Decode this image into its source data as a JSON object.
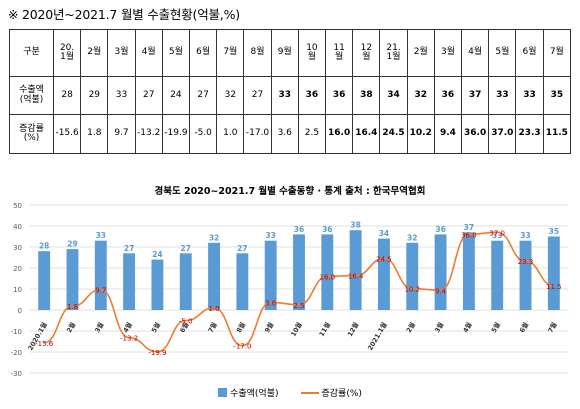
{
  "header": {
    "title": "※  2020년~2021.7 월별  수출현황(억불,%)"
  },
  "table": {
    "row_labels": [
      "구분",
      "수출액\n(억불)",
      "증감률\n(%)"
    ],
    "months": [
      "20.\n1월",
      "2월",
      "3월",
      "4월",
      "5월",
      "6월",
      "7월",
      "8월",
      "9월",
      "10\n월",
      "11\n월",
      "12\n월",
      "21.\n1월",
      "2월",
      "3월",
      "4월",
      "5월",
      "6월",
      "7월"
    ],
    "exports": [
      "28",
      "29",
      "33",
      "27",
      "24",
      "27",
      "32",
      "27",
      "33",
      "36",
      "36",
      "38",
      "34",
      "32",
      "36",
      "37",
      "33",
      "33",
      "35"
    ],
    "changes": [
      "-15.6",
      "1.8",
      "9.7",
      "-13.2",
      "-19.9",
      "-5.0",
      "1.0",
      "-17.0",
      "3.6",
      "2.5",
      "16.0",
      "16.4",
      "24.5",
      "10.2",
      "9.4",
      "36.0",
      "37.0",
      "23.3",
      "11.5"
    ]
  },
  "chart_title": "경북도 2020~2021.7 월별 수출동향   · 통계 출처 : 한국무역협회",
  "legend": {
    "bar": "수출액(억불)",
    "line": "증감률(%)"
  },
  "colors": {
    "bar": "#5b9bd5",
    "line": "#ed7d31",
    "grid": "#d9d9d9"
  },
  "chart_data": {
    "type": "bar",
    "categories": [
      "2020.1월",
      "2월",
      "3월",
      "4월",
      "5월",
      "6월",
      "7월",
      "8월",
      "9월",
      "10월",
      "11월",
      "12월",
      "2021.1월",
      "2월",
      "3월",
      "4월",
      "5월",
      "6월",
      "7월"
    ],
    "series": [
      {
        "name": "수출액(억불)",
        "type": "bar",
        "values": [
          28,
          29,
          33,
          27,
          24,
          27,
          32,
          27,
          33,
          36,
          36,
          38,
          34,
          32,
          36,
          37,
          33,
          33,
          35
        ]
      },
      {
        "name": "증감률(%)",
        "type": "line",
        "values": [
          -15.6,
          1.8,
          9.7,
          -13.2,
          -19.9,
          -5.0,
          1.0,
          -17.0,
          3.6,
          2.5,
          16.0,
          16.4,
          24.5,
          10.2,
          9.4,
          36.0,
          37.0,
          23.3,
          11.5
        ]
      }
    ],
    "y_ticks": [
      "50",
      "40",
      "30",
      "20",
      "10",
      "0",
      "-10",
      "-20",
      "-30"
    ],
    "ylim": [
      -30,
      50
    ],
    "grid": true,
    "legend_position": "bottom"
  }
}
